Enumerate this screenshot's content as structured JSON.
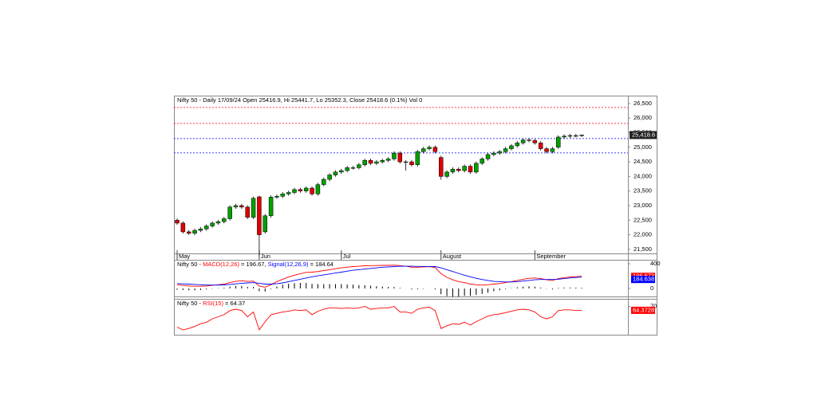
{
  "chart_data": [
    {
      "type": "candlestick",
      "title": "Nifty 50 - Daily 17/09/24 Open 25416.9, Hi 25441.7, Lo 25352.3, Close 25418.6 (0.1%) Vol 0",
      "categories": [
        "May",
        null,
        null,
        null,
        null,
        null,
        null,
        null,
        null,
        null,
        null,
        null,
        null,
        null,
        "Jun",
        null,
        null,
        null,
        null,
        null,
        null,
        null,
        null,
        null,
        null,
        null,
        null,
        null,
        "Jul",
        null,
        null,
        null,
        null,
        null,
        null,
        null,
        null,
        null,
        null,
        null,
        null,
        null,
        null,
        null,
        null,
        "August",
        null,
        null,
        null,
        null,
        null,
        null,
        null,
        null,
        null,
        null,
        null,
        null,
        null,
        null,
        null,
        "September",
        null,
        null,
        null,
        null,
        null,
        null,
        null,
        null
      ],
      "open": [
        22500,
        22400,
        22100,
        22050,
        22150,
        22200,
        22300,
        22400,
        22450,
        22550,
        22950,
        23000,
        22950,
        22600,
        23300,
        22100,
        22650,
        23290,
        23320,
        23400,
        23450,
        23550,
        23500,
        23600,
        23400,
        23720,
        23900,
        24050,
        24150,
        24200,
        24300,
        24300,
        24400,
        24550,
        24450,
        24500,
        24550,
        24600,
        24800,
        24500,
        24500,
        24400,
        24850,
        24950,
        25000,
        24650,
        24000,
        24150,
        24250,
        24200,
        24350,
        24150,
        24450,
        24600,
        24750,
        24800,
        24850,
        24950,
        25050,
        25150,
        25250,
        25230,
        25150,
        24950,
        24850,
        25000,
        25350,
        25380,
        25400,
        25416.9
      ],
      "high": [
        22560,
        22460,
        22160,
        22210,
        22260,
        22360,
        22460,
        22510,
        22610,
        23010,
        23060,
        23060,
        23010,
        23310,
        23340,
        22710,
        23350,
        23380,
        23460,
        23510,
        23610,
        23610,
        23660,
        23660,
        23780,
        23960,
        24110,
        24210,
        24260,
        24360,
        24360,
        24460,
        24610,
        24610,
        24560,
        24610,
        24660,
        24860,
        24860,
        24560,
        24560,
        24910,
        25010,
        25060,
        25060,
        24710,
        24210,
        24310,
        24310,
        24410,
        24410,
        24510,
        24660,
        24810,
        24860,
        24910,
        25010,
        25110,
        25210,
        25310,
        25310,
        25290,
        25210,
        25010,
        25010,
        25410,
        25440,
        25460,
        25460,
        25441.7
      ],
      "low": [
        22340,
        22040,
        21990,
        21990,
        22090,
        22140,
        22240,
        22340,
        22390,
        22490,
        22890,
        22890,
        22540,
        22540,
        21280,
        22040,
        22590,
        23230,
        23260,
        23340,
        23390,
        23440,
        23440,
        23340,
        23340,
        23660,
        23840,
        23990,
        24090,
        24140,
        24240,
        24240,
        24340,
        24390,
        24390,
        24440,
        24490,
        24540,
        24440,
        24200,
        24340,
        24340,
        24790,
        24890,
        24790,
        23890,
        23940,
        24090,
        24140,
        24140,
        24090,
        24090,
        24390,
        24540,
        24690,
        24740,
        24790,
        24890,
        24990,
        25090,
        25170,
        25090,
        24890,
        24790,
        24790,
        24940,
        25290,
        25320,
        25340,
        25352.3
      ],
      "close": [
        22400,
        22100,
        22050,
        22150,
        22200,
        22300,
        22400,
        22450,
        22550,
        22950,
        23000,
        22950,
        22600,
        23250,
        22000,
        22650,
        23290,
        23320,
        23400,
        23450,
        23550,
        23500,
        23600,
        23400,
        23720,
        23900,
        24050,
        24150,
        24200,
        24300,
        24300,
        24400,
        24550,
        24450,
        24500,
        24550,
        24600,
        24800,
        24500,
        24500,
        24400,
        24850,
        24950,
        25000,
        24850,
        24000,
        24150,
        24250,
        24200,
        24350,
        24150,
        24450,
        24600,
        24750,
        24800,
        24850,
        24950,
        25050,
        25150,
        25250,
        25230,
        25150,
        24950,
        24850,
        24950,
        25350,
        25380,
        25400,
        25400,
        25418.6
      ],
      "up_color": "#00a000",
      "down_color": "#e00000",
      "levels": [
        {
          "value": 26363,
          "color": "#ff0000"
        },
        {
          "value": 25817,
          "color": "#ff0000"
        },
        {
          "value": 25298,
          "color": "#0000ff"
        },
        {
          "value": 24806,
          "color": "#0000ff"
        }
      ],
      "last_price_label": "25,418.6",
      "ylim": [
        21360,
        26770
      ],
      "yticks": [
        {
          "value": 21500,
          "label": "21,500"
        },
        {
          "value": 22000,
          "label": "22,000"
        },
        {
          "value": 22500,
          "label": "22,500"
        },
        {
          "value": 23000,
          "label": "23,000"
        },
        {
          "value": 23500,
          "label": "23,500"
        },
        {
          "value": 24000,
          "label": "24,000"
        },
        {
          "value": 24500,
          "label": "24,500"
        },
        {
          "value": 25000,
          "label": "25,000"
        },
        {
          "value": 25500,
          "label": "25,500"
        },
        {
          "value": 26000,
          "label": "26,000"
        },
        {
          "value": 26500,
          "label": "26,500"
        }
      ]
    },
    {
      "type": "line",
      "label": "Nifty 50 -",
      "series": [
        {
          "name": "MACD(12,26)",
          "legend_value": "= 196.67,",
          "box_label": "196.673",
          "color": "#ff0000",
          "values": [
            60,
            50,
            40,
            35,
            35,
            40,
            50,
            60,
            70,
            95,
            115,
            125,
            115,
            120,
            40,
            20,
            60,
            110,
            150,
            185,
            215,
            240,
            260,
            265,
            275,
            290,
            305,
            320,
            335,
            345,
            355,
            360,
            368,
            370,
            372,
            375,
            375,
            378,
            370,
            360,
            345,
            345,
            350,
            355,
            340,
            240,
            180,
            140,
            110,
            95,
            70,
            60,
            55,
            60,
            70,
            80,
            95,
            110,
            130,
            150,
            165,
            170,
            160,
            140,
            130,
            160,
            175,
            185,
            192,
            196.67
          ]
        },
        {
          "name": "Signal(12,26,9)",
          "legend_value": "= 184.64",
          "box_label": "184.638",
          "color": "#0000ff",
          "values": [
            80,
            75,
            70,
            65,
            60,
            55,
            55,
            55,
            58,
            65,
            75,
            85,
            90,
            95,
            85,
            70,
            70,
            78,
            90,
            110,
            130,
            150,
            170,
            190,
            205,
            220,
            235,
            250,
            265,
            280,
            295,
            305,
            315,
            325,
            335,
            345,
            350,
            355,
            360,
            360,
            360,
            358,
            357,
            356,
            355,
            335,
            305,
            275,
            245,
            215,
            190,
            165,
            145,
            130,
            115,
            110,
            105,
            105,
            110,
            120,
            130,
            140,
            145,
            145,
            145,
            150,
            160,
            170,
            178,
            184.64
          ]
        }
      ],
      "histogram": [
        -20,
        -25,
        -30,
        -30,
        -25,
        -15,
        -5,
        5,
        12,
        30,
        40,
        40,
        25,
        25,
        -45,
        -50,
        -10,
        32,
        60,
        75,
        85,
        90,
        90,
        75,
        70,
        70,
        70,
        70,
        70,
        65,
        60,
        55,
        53,
        45,
        37,
        30,
        25,
        23,
        10,
        0,
        -15,
        -13,
        -7,
        -1,
        -15,
        -95,
        -125,
        -135,
        -135,
        -120,
        -120,
        -105,
        -90,
        -70,
        -45,
        -30,
        -10,
        5,
        20,
        30,
        35,
        30,
        15,
        -5,
        -15,
        10,
        15,
        15,
        14,
        12.03
      ],
      "histogram_color": "#000000",
      "ylim": [
        -130,
        465
      ],
      "yticks": [
        0,
        400
      ]
    },
    {
      "type": "line",
      "label": "Nifty 50 -",
      "series": [
        {
          "name": "RSI(15)",
          "legend_value": "= 64.37",
          "box_label": "64.3728",
          "color": "#ff0000",
          "values": [
            40,
            36,
            38,
            41,
            45,
            47,
            52,
            55,
            58,
            64,
            66,
            64,
            55,
            62,
            36,
            48,
            58,
            60,
            62,
            63,
            65,
            64,
            65,
            58,
            63,
            66,
            68,
            68,
            67,
            68,
            67,
            68,
            70,
            66,
            67,
            68,
            68,
            70,
            62,
            62,
            60,
            66,
            68,
            69,
            64,
            38,
            42,
            45,
            44,
            47,
            43,
            48,
            52,
            56,
            58,
            59,
            61,
            63,
            65,
            66,
            65,
            62,
            55,
            52,
            55,
            64,
            65,
            65,
            64,
            64.37
          ]
        }
      ],
      "ylim": [
        29,
        81
      ],
      "yticks": [
        70
      ]
    }
  ]
}
